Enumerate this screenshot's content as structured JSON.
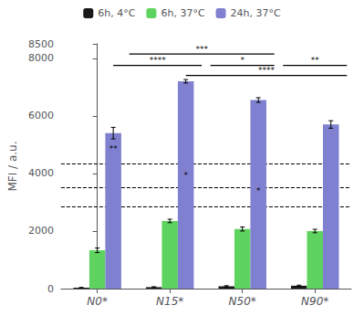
{
  "chart_data": {
    "type": "bar",
    "categories": [
      "N0*",
      "N15*",
      "N50*",
      "N90*"
    ],
    "series": [
      {
        "name": "6h, 4°C",
        "color": "#1a1a1a",
        "values": [
          30,
          50,
          80,
          100
        ],
        "errors": [
          10,
          15,
          20,
          20
        ]
      },
      {
        "name": "6h, 37°C",
        "color": "#5fd35f",
        "values": [
          1330,
          2350,
          2070,
          2000
        ],
        "errors": [
          80,
          60,
          70,
          60
        ]
      },
      {
        "name": "24h, 37°C",
        "color": "#8080d0",
        "values": [
          5400,
          7200,
          6550,
          5700
        ],
        "errors": [
          200,
          60,
          80,
          130
        ]
      }
    ],
    "ylabel": "MFI / a.u.",
    "ylim": [
      0,
      8500
    ],
    "yticks": [
      0,
      2000,
      4000,
      6000,
      8000
    ],
    "grid": false,
    "legend": "top",
    "reference_lines": [
      2850,
      3500,
      4350
    ],
    "brackets": [
      {
        "x1": 0.44,
        "x2": 2.44,
        "y": 8150,
        "label": "***",
        "label_x": 1.44
      },
      {
        "x1": 0.22,
        "x2": 1.44,
        "y": 7750,
        "label": "****",
        "label_x": 0.83
      },
      {
        "x1": 1.56,
        "x2": 2.44,
        "y": 7750,
        "label": "*",
        "label_x": 2.0
      },
      {
        "x1": 2.56,
        "x2": 3.44,
        "y": 7750,
        "label": "**",
        "label_x": 3.0
      },
      {
        "x1": 1.22,
        "x2": 3.44,
        "y": 7400,
        "label": "****",
        "label_x": 2.33
      }
    ],
    "annotations": [
      {
        "x": 0.22,
        "y": 4700,
        "text": "**"
      },
      {
        "x": 1.22,
        "y": 3800,
        "text": "*"
      },
      {
        "x": 2.22,
        "y": 3250,
        "text": "*"
      }
    ]
  }
}
